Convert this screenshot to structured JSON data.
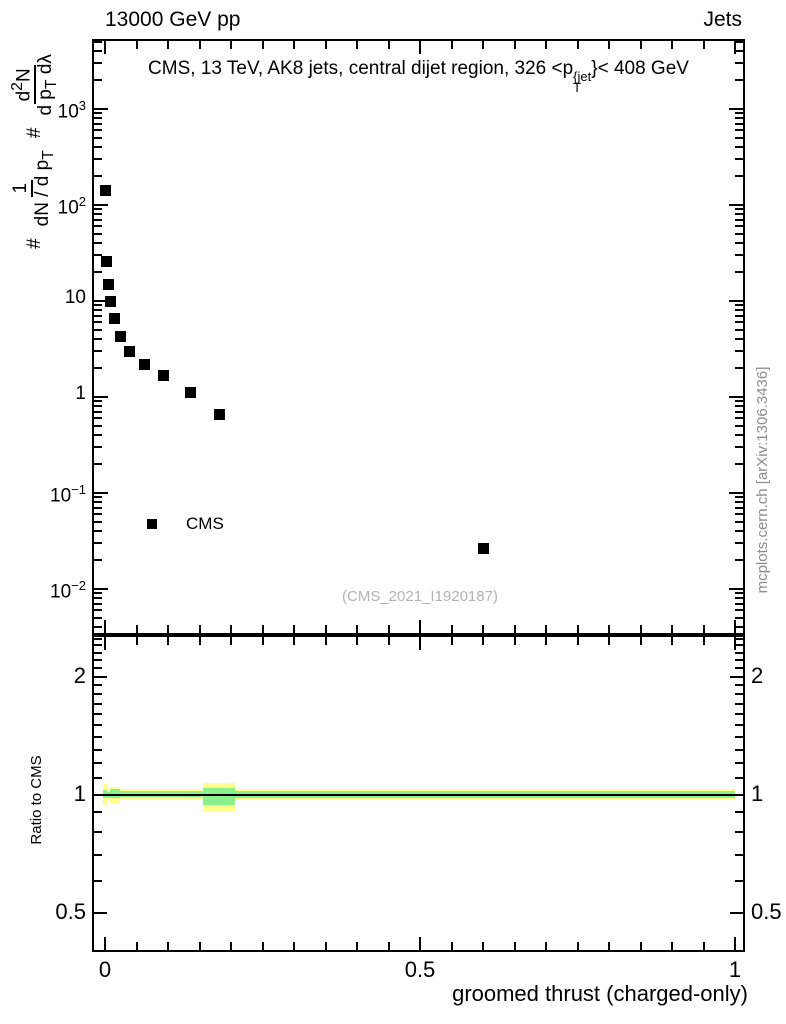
{
  "header": {
    "left": "13000 GeV pp",
    "right": "Jets"
  },
  "title": {
    "prefix": "CMS, 13 TeV, AK8 jets, central dijet region, 326 <p",
    "sup": "{jet",
    "sub": "T",
    "suffix": "}< 408 GeV"
  },
  "ylabel": {
    "hash1": "#",
    "frac1_num": "1",
    "frac1_den_pre": "dN / d p",
    "frac1_den_sub": "T",
    "hash2": "#",
    "frac2_num_pre": "d",
    "frac2_num_sup": "2",
    "frac2_num_post": "N",
    "frac2_den_pre": "d p",
    "frac2_den_sub": "T",
    "frac2_den_post": " dλ"
  },
  "legend": {
    "label": "CMS",
    "marker": "filled-square",
    "color": "#000000"
  },
  "watermark": "(CMS_2021_I1920187)",
  "side_text": "mcplots.cern.ch [arXiv:1306.3436]",
  "colors": {
    "band_yellow": "#ffff8c",
    "band_green": "#8af28a",
    "marker": "#000000",
    "watermark_gray": "#b3b3b3",
    "side_gray": "#8c8c8c",
    "frame": "#000000"
  },
  "chart_data": [
    {
      "type": "scatter",
      "name": "main-panel",
      "title": "CMS, 13 TeV, AK8 jets, central dijet region, 326 < pT{jet} < 408 GeV",
      "xlabel": "groomed thrust (charged-only)",
      "ylabel": "# 1/(dN/dpT) # d2N/(dpT dλ)",
      "xscale": "linear",
      "yscale": "log",
      "xlim": [
        -0.021,
        1.016
      ],
      "ylim": [
        0.0033,
        5400
      ],
      "x_minor_step": 0.05,
      "grid": false,
      "legend_position": "inside-left",
      "x_ticks": [
        {
          "v": 0,
          "label": "0"
        },
        {
          "v": 0.5,
          "label": "0.5"
        },
        {
          "v": 1,
          "label": "1"
        }
      ],
      "y_ticks": [
        {
          "v": 1000,
          "base": "10",
          "exp": "3"
        },
        {
          "v": 100,
          "base": "10",
          "exp": "2"
        },
        {
          "v": 10,
          "base": "10",
          "exp": ""
        },
        {
          "v": 1,
          "base": "1",
          "exp": ""
        },
        {
          "v": 0.1,
          "base": "10",
          "exp": "−1"
        },
        {
          "v": 0.01,
          "base": "10",
          "exp": "−2"
        }
      ],
      "series": [
        {
          "name": "CMS",
          "marker": "filled-square",
          "color": "#000000",
          "points": [
            [
              0.0,
              145
            ],
            [
              0.002,
              26
            ],
            [
              0.005,
              15
            ],
            [
              0.008,
              10
            ],
            [
              0.015,
              6.6
            ],
            [
              0.024,
              4.3
            ],
            [
              0.038,
              3.0
            ],
            [
              0.062,
              2.2
            ],
            [
              0.092,
              1.7
            ],
            [
              0.135,
              1.12
            ],
            [
              0.181,
              0.66
            ],
            [
              0.6,
              0.027
            ]
          ]
        }
      ]
    },
    {
      "type": "band",
      "name": "ratio-panel",
      "ylabel": "Ratio to CMS",
      "yscale": "log",
      "ylim": [
        0.395,
        2.54
      ],
      "y_ticks": [
        {
          "v": 2,
          "label": "2"
        },
        {
          "v": 1,
          "label": "1"
        },
        {
          "v": 0.5,
          "label": "0.5"
        }
      ],
      "line": {
        "y": 1.0,
        "color": "#000000"
      },
      "bands": [
        {
          "x0": -0.003,
          "x1": 0.003,
          "yellow": [
            0.939,
            1.064
          ],
          "green": [
            0.976,
            1.025
          ]
        },
        {
          "x0": 0.003,
          "x1": 0.008,
          "yellow": [
            0.974,
            1.028
          ],
          "green": [
            0.982,
            1.016
          ]
        },
        {
          "x0": 0.008,
          "x1": 0.024,
          "yellow": [
            0.953,
            1.045
          ],
          "green": [
            0.976,
            1.031
          ]
        },
        {
          "x0": 0.024,
          "x1": 0.156,
          "yellow": [
            0.971,
            1.03
          ],
          "green": [
            0.982,
            1.018
          ]
        },
        {
          "x0": 0.156,
          "x1": 0.206,
          "yellow": [
            0.904,
            1.072
          ],
          "green": [
            0.94,
            1.037
          ]
        },
        {
          "x0": 0.206,
          "x1": 1.0,
          "yellow": [
            0.968,
            1.033
          ],
          "green": [
            0.98,
            1.021
          ]
        }
      ]
    }
  ]
}
